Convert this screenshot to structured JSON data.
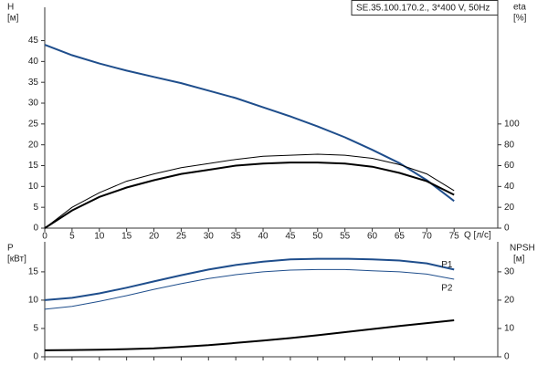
{
  "chart_data": [
    {
      "type": "line",
      "annotation": "SE.35.100.170.2., 3*400 V, 50Hz",
      "x_label": "Q [л/с]",
      "y_label": [
        "H",
        "[м]"
      ],
      "y2_label": [
        "eta",
        "[%]"
      ],
      "x": [
        0,
        5,
        10,
        15,
        20,
        25,
        30,
        35,
        40,
        45,
        50,
        55,
        60,
        65,
        70,
        75
      ],
      "xlim": [
        0,
        83
      ],
      "xticks": [
        0,
        5,
        10,
        15,
        20,
        25,
        30,
        35,
        40,
        45,
        50,
        55,
        60,
        65,
        70,
        75
      ],
      "ylim": [
        0,
        53
      ],
      "yticks": [
        0,
        5,
        10,
        15,
        20,
        25,
        30,
        35,
        40,
        45
      ],
      "y2lim": [
        0,
        212
      ],
      "y2ticks": [
        0,
        20,
        40,
        60,
        80,
        100
      ],
      "series": [
        {
          "color": "#1f4e8c",
          "values": [
            44,
            41.5,
            39.5,
            37.8,
            36.3,
            34.8,
            33,
            31.2,
            29,
            26.8,
            24.4,
            21.8,
            18.8,
            15.6,
            11.5,
            6.5
          ]
        },
        {
          "color": "#000000",
          "axis": "y2",
          "values": [
            0,
            20,
            34,
            45,
            52,
            58,
            62,
            66,
            69,
            70,
            71,
            70,
            67,
            61,
            52,
            36
          ]
        },
        {
          "color": "#000000",
          "axis": "y2",
          "values": [
            0,
            17,
            30,
            39,
            46,
            52,
            56,
            60,
            62,
            63,
            63,
            62,
            59,
            53,
            45,
            32
          ]
        }
      ]
    },
    {
      "type": "line",
      "y_label": [
        "P",
        "[кВт]"
      ],
      "y2_label": [
        "NPSH",
        "[м]"
      ],
      "x": [
        0,
        5,
        10,
        15,
        20,
        25,
        30,
        35,
        40,
        45,
        50,
        55,
        60,
        65,
        70,
        75
      ],
      "xlim": [
        0,
        83
      ],
      "xticks": [
        0,
        5,
        10,
        15,
        20,
        25,
        30,
        35,
        40,
        45,
        50,
        55,
        60,
        65,
        70,
        75
      ],
      "ylim": [
        0,
        20.3
      ],
      "yticks": [
        0,
        5,
        10,
        15
      ],
      "y2lim": [
        0,
        40.6
      ],
      "y2ticks": [
        0,
        10,
        20,
        30
      ],
      "series": [
        {
          "name": "P1",
          "color": "#1f4e8c",
          "values": [
            10,
            10.4,
            11.2,
            12.2,
            13.3,
            14.4,
            15.4,
            16.2,
            16.8,
            17.2,
            17.3,
            17.3,
            17.2,
            17,
            16.5,
            15.4
          ]
        },
        {
          "name": "P2",
          "color": "#1f4e8c",
          "values": [
            8.4,
            8.9,
            9.8,
            10.8,
            11.9,
            12.9,
            13.8,
            14.5,
            15,
            15.3,
            15.4,
            15.4,
            15.2,
            15,
            14.6,
            13.7
          ]
        },
        {
          "color": "#000000",
          "axis": "y2",
          "values": [
            2.3,
            2.4,
            2.5,
            2.7,
            3,
            3.5,
            4.1,
            4.9,
            5.7,
            6.6,
            7.6,
            8.7,
            9.8,
            10.9,
            11.9,
            12.9
          ]
        }
      ]
    }
  ]
}
